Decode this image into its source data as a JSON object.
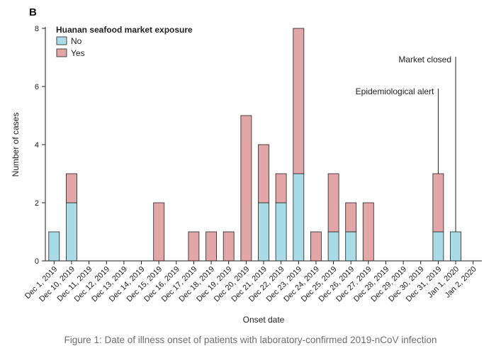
{
  "chart_data": {
    "type": "bar",
    "stacked": true,
    "panel_label": "B",
    "xlabel": "Onset date",
    "ylabel": "Number of cases",
    "ylim": [
      0,
      8
    ],
    "yticks": [
      0,
      2,
      4,
      6,
      8
    ],
    "legend": {
      "title": "Huanan seafood market exposure",
      "placement": "top-left"
    },
    "categories": [
      "Dec 1, 2019",
      "Dec 10, 2019",
      "Dec 11, 2019",
      "Dec 12, 2019",
      "Dec 13, 2019",
      "Dec 14, 2019",
      "Dec 15, 2019",
      "Dec 16, 2019",
      "Dec 17, 2019",
      "Dec 18, 2019",
      "Dec 19, 2019",
      "Dec 20, 2019",
      "Dec 21, 2019",
      "Dec 22, 2019",
      "Dec 23, 2019",
      "Dec 24, 2019",
      "Dec 25, 2019",
      "Dec 26, 2019",
      "Dec 27, 2019",
      "Dec 28, 2019",
      "Dec 29, 2019",
      "Dec 30, 2019",
      "Dec 31, 2019",
      "Jan 1, 2020",
      "Jan 2, 2020"
    ],
    "series": [
      {
        "name": "No",
        "color": "#a8dbe6",
        "values": [
          1,
          2,
          0,
          0,
          0,
          0,
          0,
          0,
          0,
          0,
          0,
          0,
          2,
          2,
          3,
          0,
          1,
          1,
          0,
          0,
          0,
          0,
          1,
          1,
          0
        ]
      },
      {
        "name": "Yes",
        "color": "#e2a6a6",
        "values": [
          0,
          1,
          0,
          0,
          0,
          0,
          2,
          0,
          1,
          1,
          1,
          5,
          2,
          1,
          5,
          1,
          2,
          1,
          2,
          0,
          0,
          0,
          2,
          0,
          0
        ]
      }
    ],
    "annotations": [
      {
        "text": "Epidemiological alert",
        "category": "Dec 31, 2019"
      },
      {
        "text": "Market closed",
        "category": "Jan 1, 2020"
      }
    ]
  },
  "caption": "Figure 1: Date of illness onset of patients with laboratory-confirmed 2019-nCoV infection"
}
